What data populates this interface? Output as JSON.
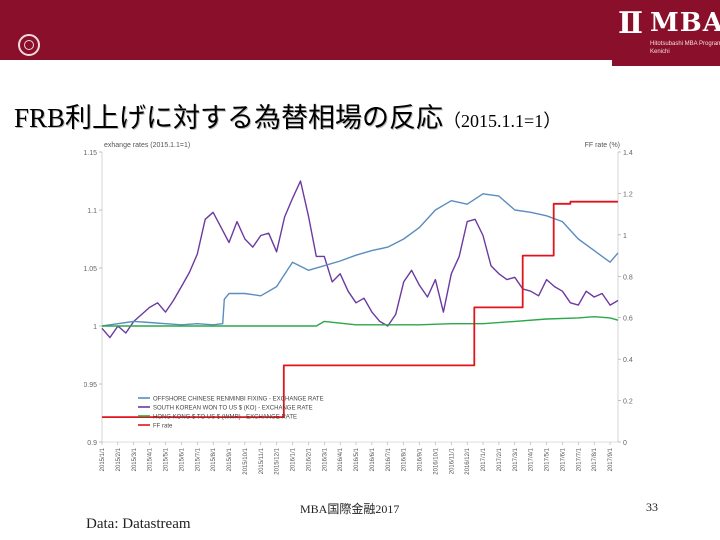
{
  "slide": {
    "title": "FRB利上げに対する為替相場の反応",
    "title_suffix": "（2015.1.1=1）",
    "footer": "MBA国際金融2017",
    "page_number": "33",
    "source": "Data: Datastream"
  },
  "logo": {
    "mark": "II",
    "text": "MBA",
    "sub_line1": "Hitotsubashi MBA Program",
    "sub_line2": "Kenichi"
  },
  "colors": {
    "brand": "#8a0f2a",
    "cny": "#5b8dbe",
    "krw": "#6b3aa0",
    "hkd": "#2aa84a",
    "ff": "#e2141b"
  },
  "chart_data": {
    "type": "line",
    "title": "",
    "left_axis_label": "exhange rates (2015.1.1=1)",
    "right_axis_label": "FF rate (%)",
    "ylim_left": [
      0.9,
      1.15
    ],
    "ylim_right": [
      0,
      1.4
    ],
    "left_ticks": [
      "1.15",
      "1.1",
      "1.05",
      "1",
      "0.95",
      "0.9"
    ],
    "left_tick_values": [
      1.15,
      1.1,
      1.05,
      1.0,
      0.95,
      0.9
    ],
    "right_ticks": [
      "1.4",
      "1.2",
      "1",
      "0.8",
      "0.6",
      "0.4",
      "0.2",
      "0"
    ],
    "right_tick_values": [
      1.4,
      1.2,
      1.0,
      0.8,
      0.6,
      0.4,
      0.2,
      0.0
    ],
    "x_tick_labels": [
      "2015/1/1",
      "2015/2/1",
      "2015/3/1",
      "2015/4/1",
      "2015/5/1",
      "2015/6/1",
      "2015/7/1",
      "2015/8/1",
      "2015/9/1",
      "2015/10/1",
      "2015/11/1",
      "2015/12/1",
      "2016/1/1",
      "2016/2/1",
      "2016/3/1",
      "2016/4/1",
      "2016/5/1",
      "2016/6/1",
      "2016/7/1",
      "2016/8/1",
      "2016/9/1",
      "2016/10/1",
      "2016/11/1",
      "2016/12/1",
      "2017/1/1",
      "2017/2/1",
      "2017/3/1",
      "2017/4/1",
      "2017/5/1",
      "2017/6/1",
      "2017/7/1",
      "2017/8/1",
      "2017/9/1"
    ],
    "x_range": [
      0,
      32.5
    ],
    "series": [
      {
        "name": "OFFSHORE CHINESE RENMINBI FIXING - EXCHANGE RATE",
        "axis": "left",
        "color": "#5b8dbe",
        "x": [
          0,
          1,
          2,
          3,
          4,
          5,
          6,
          7,
          7.6,
          7.7,
          8,
          9,
          10,
          11,
          12,
          13,
          14,
          15,
          16,
          17,
          18,
          19,
          20,
          21,
          22,
          23,
          24,
          25,
          26,
          27,
          28,
          29,
          30,
          31,
          32,
          32.5
        ],
        "values": [
          1.0,
          1.002,
          1.004,
          1.003,
          1.002,
          1.001,
          1.002,
          1.001,
          1.002,
          1.023,
          1.028,
          1.028,
          1.026,
          1.034,
          1.055,
          1.048,
          1.052,
          1.056,
          1.061,
          1.065,
          1.068,
          1.075,
          1.085,
          1.1,
          1.108,
          1.105,
          1.114,
          1.112,
          1.1,
          1.098,
          1.095,
          1.09,
          1.075,
          1.065,
          1.055,
          1.063
        ]
      },
      {
        "name": "SOUTH KOREAN WON TO US $ (KO) - EXCHANGE RATE",
        "axis": "left",
        "color": "#6b3aa0",
        "x": [
          0,
          0.5,
          1,
          1.5,
          2,
          2.5,
          3,
          3.5,
          4,
          4.5,
          5,
          5.5,
          6,
          6.5,
          7,
          7.5,
          8,
          8.5,
          9,
          9.5,
          10,
          10.5,
          11,
          11.5,
          12,
          12.5,
          13,
          13.5,
          14,
          14.5,
          15,
          15.5,
          16,
          16.5,
          17,
          17.5,
          18,
          18.5,
          19,
          19.5,
          20,
          20.5,
          21,
          21.5,
          22,
          22.5,
          23,
          23.5,
          24,
          24.5,
          25,
          25.5,
          26,
          26.5,
          27,
          27.5,
          28,
          28.5,
          29,
          29.5,
          30,
          30.5,
          31,
          31.5,
          32,
          32.5
        ],
        "values": [
          0.998,
          0.99,
          1.0,
          0.994,
          1.004,
          1.01,
          1.016,
          1.02,
          1.012,
          1.022,
          1.034,
          1.046,
          1.062,
          1.092,
          1.098,
          1.085,
          1.072,
          1.09,
          1.075,
          1.068,
          1.078,
          1.08,
          1.064,
          1.094,
          1.11,
          1.125,
          1.095,
          1.06,
          1.06,
          1.038,
          1.045,
          1.03,
          1.02,
          1.024,
          1.012,
          1.004,
          1.0,
          1.01,
          1.038,
          1.048,
          1.035,
          1.025,
          1.04,
          1.012,
          1.045,
          1.06,
          1.09,
          1.092,
          1.078,
          1.052,
          1.045,
          1.04,
          1.042,
          1.032,
          1.03,
          1.026,
          1.04,
          1.034,
          1.03,
          1.02,
          1.018,
          1.03,
          1.025,
          1.028,
          1.018,
          1.022
        ]
      },
      {
        "name": "HONG KONG $ TO US $ (WMR) - EXCHANGE RATE",
        "axis": "left",
        "color": "#2aa84a",
        "x": [
          0,
          3,
          6,
          9,
          12,
          13.5,
          14,
          16,
          18,
          20,
          22,
          24,
          26,
          28,
          30,
          31,
          32,
          32.5
        ],
        "values": [
          1.0,
          1.0,
          1.0,
          1.0,
          1.0,
          1.0,
          1.004,
          1.001,
          1.001,
          1.001,
          1.002,
          1.002,
          1.004,
          1.006,
          1.007,
          1.008,
          1.007,
          1.005
        ]
      },
      {
        "name": "FF rate",
        "axis": "right",
        "color": "#e2141b",
        "x": [
          0,
          11.45,
          11.45,
          23.45,
          23.45,
          26.5,
          26.5,
          28.45,
          28.45,
          29.5,
          29.5,
          32.5
        ],
        "values": [
          0.12,
          0.12,
          0.37,
          0.37,
          0.65,
          0.65,
          0.9,
          0.9,
          1.15,
          1.15,
          1.16,
          1.16
        ]
      }
    ]
  }
}
